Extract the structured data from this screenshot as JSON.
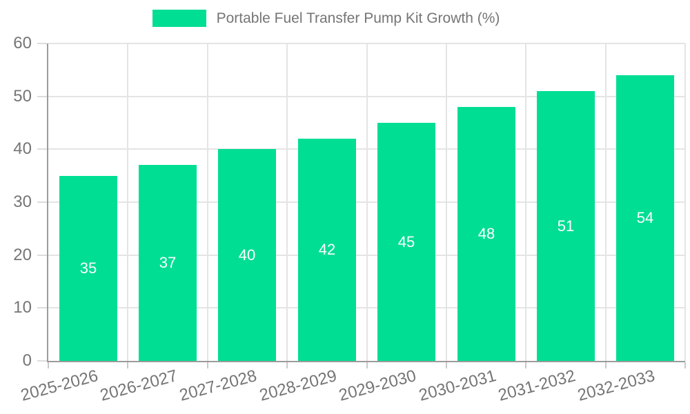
{
  "chart_data": {
    "type": "bar",
    "title": "Portable Fuel Transfer Pump Kit Growth (%)",
    "legend": {
      "label": "Portable Fuel Transfer Pump Kit Growth (%)",
      "position": "top-center"
    },
    "categories": [
      "2025-2026",
      "2026-2027",
      "2027-2028",
      "2028-2029",
      "2029-2030",
      "2030-2031",
      "2031-2032",
      "2032-2033"
    ],
    "values": [
      35,
      37,
      40,
      42,
      45,
      48,
      51,
      54
    ],
    "xlabel": "",
    "ylabel": "",
    "ylim": [
      0,
      60
    ],
    "yticks": [
      0,
      10,
      20,
      30,
      40,
      50,
      60
    ],
    "grid": true,
    "bar_label_position": "middle",
    "x_label_rotation_deg": -15,
    "colors": {
      "bar": "#00DE94",
      "axis": "#9b9b9b",
      "grid": "#e4e4e4",
      "text": "#757575",
      "value_label": "#ffffff",
      "background": "#ffffff"
    }
  }
}
